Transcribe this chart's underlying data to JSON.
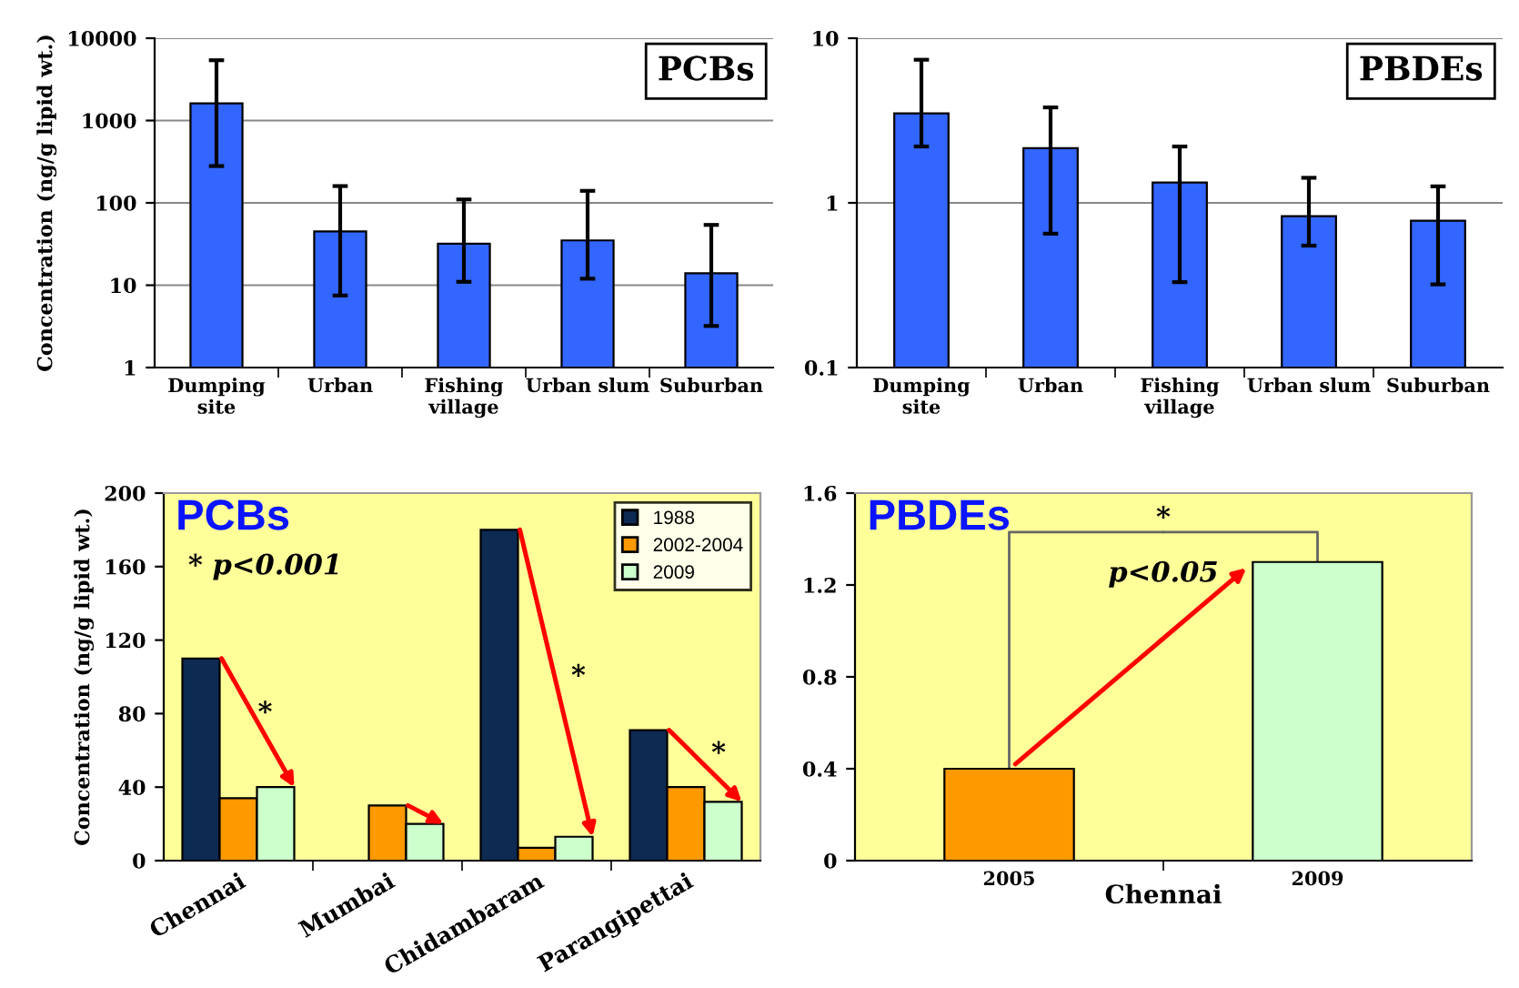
{
  "chart_data": [
    {
      "type": "bar",
      "title": "PCBs",
      "ylabel": "Concentration (ng/g lipid wt.)",
      "categories": [
        "Dumping\nsite",
        "Urban",
        "Fishing\nvillage",
        "Urban slum",
        "Suburban"
      ],
      "color": "#3366ff",
      "values": [
        1620,
        45,
        32,
        35,
        14
      ],
      "errors": [
        [
          280,
          5400
        ],
        [
          7.5,
          160
        ],
        [
          11,
          110
        ],
        [
          12,
          140
        ],
        [
          3.2,
          54
        ]
      ],
      "log": true,
      "ylim": [
        1,
        10000
      ],
      "yticks": [
        1,
        10,
        100,
        1000,
        10000
      ],
      "grid": "y"
    },
    {
      "type": "bar",
      "title": "PBDEs",
      "categories": [
        "Dumping\nsite",
        "Urban",
        "Fishing\nvillage",
        "Urban slum",
        "Suburban"
      ],
      "color": "#3366ff",
      "values": [
        3.5,
        2.15,
        1.33,
        0.83,
        0.78
      ],
      "errors": [
        [
          2.2,
          7.4
        ],
        [
          0.65,
          3.8
        ],
        [
          0.33,
          2.2
        ],
        [
          0.55,
          1.42
        ],
        [
          0.32,
          1.26
        ]
      ],
      "log": true,
      "ylim": [
        0.1,
        10
      ],
      "yticks": [
        0.1,
        1,
        10
      ],
      "grid": "y"
    },
    {
      "type": "bar",
      "title": "PCBs",
      "ylabel": "Concentration (ng/g lipid wt.)",
      "categories": [
        "Chennai",
        "Mumbai",
        "Chidambaram",
        "Parangipettai"
      ],
      "series": [
        {
          "name": "1988",
          "color": "#0d2a52",
          "values": [
            110,
            null,
            180,
            71
          ]
        },
        {
          "name": "2002-2004",
          "color": "#ff9900",
          "values": [
            34,
            30,
            7,
            40
          ]
        },
        {
          "name": "2009",
          "color": "#ccffcc",
          "values": [
            40,
            20,
            13,
            32
          ]
        }
      ],
      "annotations": [
        "* p<0.001",
        "*",
        "*",
        "*"
      ],
      "ylim": [
        0,
        200
      ],
      "yticks": [
        0,
        40,
        80,
        120,
        160,
        200
      ],
      "legend": "top right"
    },
    {
      "type": "bar",
      "title": "PBDEs",
      "xlabel": "Chennai",
      "categories": [
        "2005",
        "2009"
      ],
      "colors": [
        "#ff9900",
        "#ccffcc"
      ],
      "values": [
        0.4,
        1.3
      ],
      "annotations": [
        {
          "text": "*",
          "x": "2009",
          "y": 1.3
        },
        "p<0.05"
      ],
      "ylim": [
        0,
        1.6
      ],
      "yticks": [
        0,
        0.4,
        0.8,
        1.2,
        1.6
      ]
    }
  ]
}
